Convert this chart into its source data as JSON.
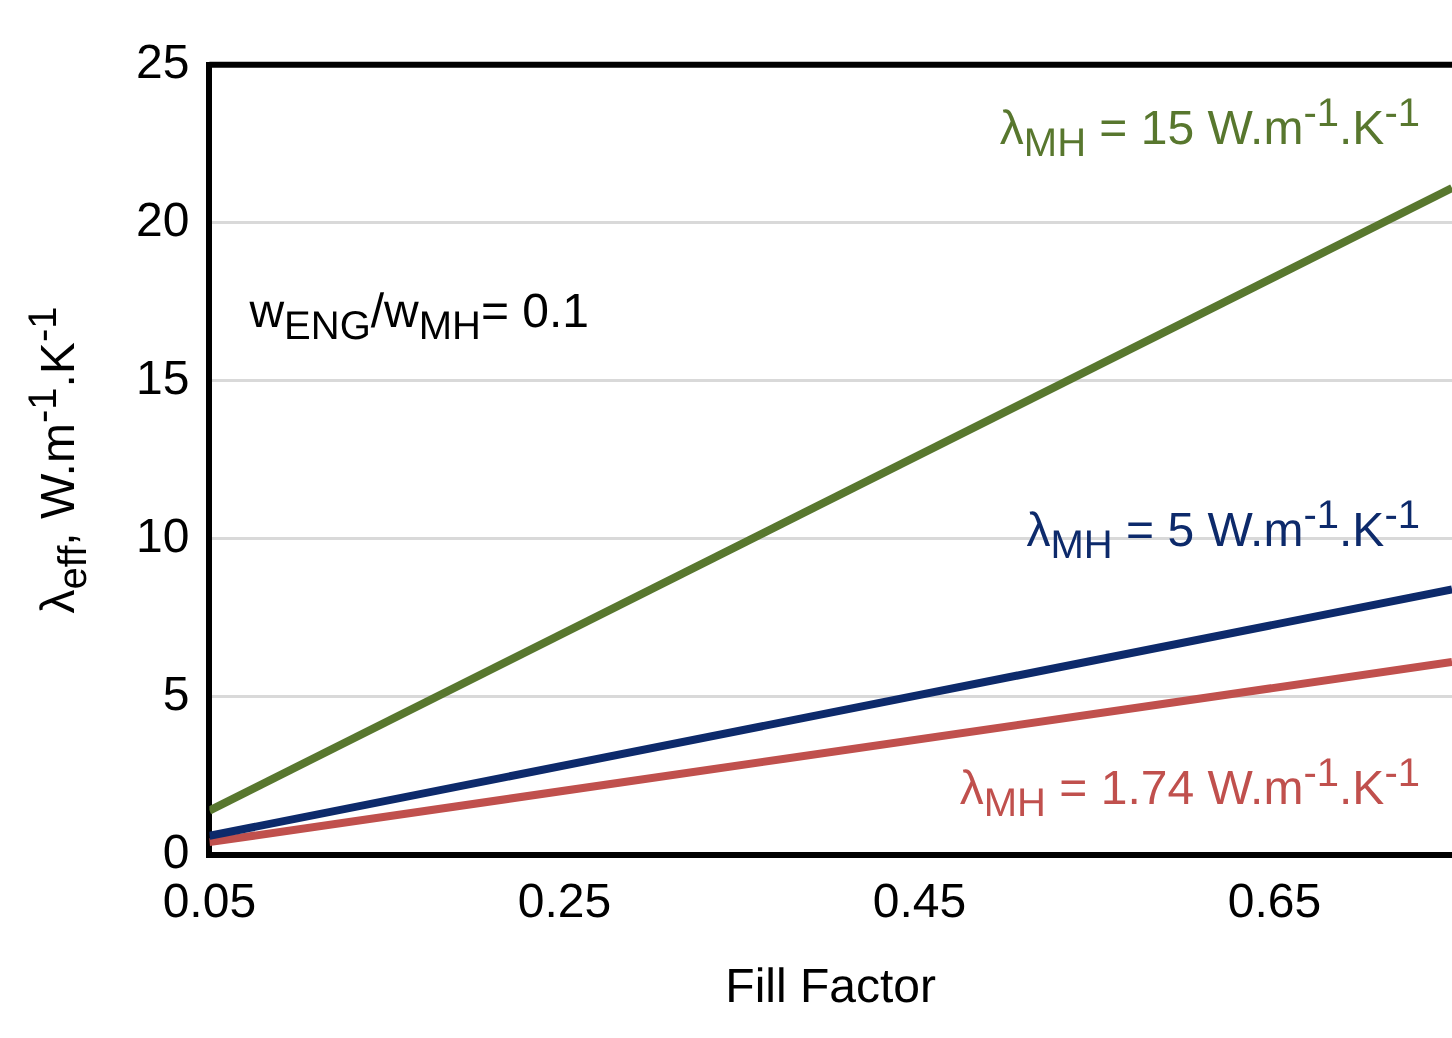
{
  "chart_data": {
    "type": "line",
    "xlabel": "Fill Factor",
    "ylabel": "λ$_{eff}$, W.m$^{-1}$.K$^{-1}$",
    "x": [
      0.05,
      0.75
    ],
    "series": [
      {
        "name": "λ$_{MH}$ = 15 W.m$^{-1}$.K$^{-1}$",
        "color": "#58772e",
        "values": [
          1.4,
          21.1
        ]
      },
      {
        "name": "λ$_{MH}$ = 5 W.m$^{-1}$.K$^{-1}$",
        "color": "#0d2a6b",
        "values": [
          0.6,
          8.4
        ]
      },
      {
        "name": "λ$_{MH}$ = 1.74 W.m$^{-1}$.K$^{-1}$",
        "color": "#c0504d",
        "values": [
          0.4,
          6.1
        ]
      }
    ],
    "xlim": [
      0.05,
      0.75
    ],
    "xticks": [
      0.05,
      0.25,
      0.45,
      0.65
    ],
    "ylim": [
      0,
      25
    ],
    "yticks": [
      0,
      5,
      10,
      15,
      20,
      25
    ],
    "grid": "y",
    "legend": false,
    "marker": "none",
    "line_style": "solid",
    "annotations": [
      "w$_{ENG}$/w$_{MH}$= 0.1"
    ]
  }
}
